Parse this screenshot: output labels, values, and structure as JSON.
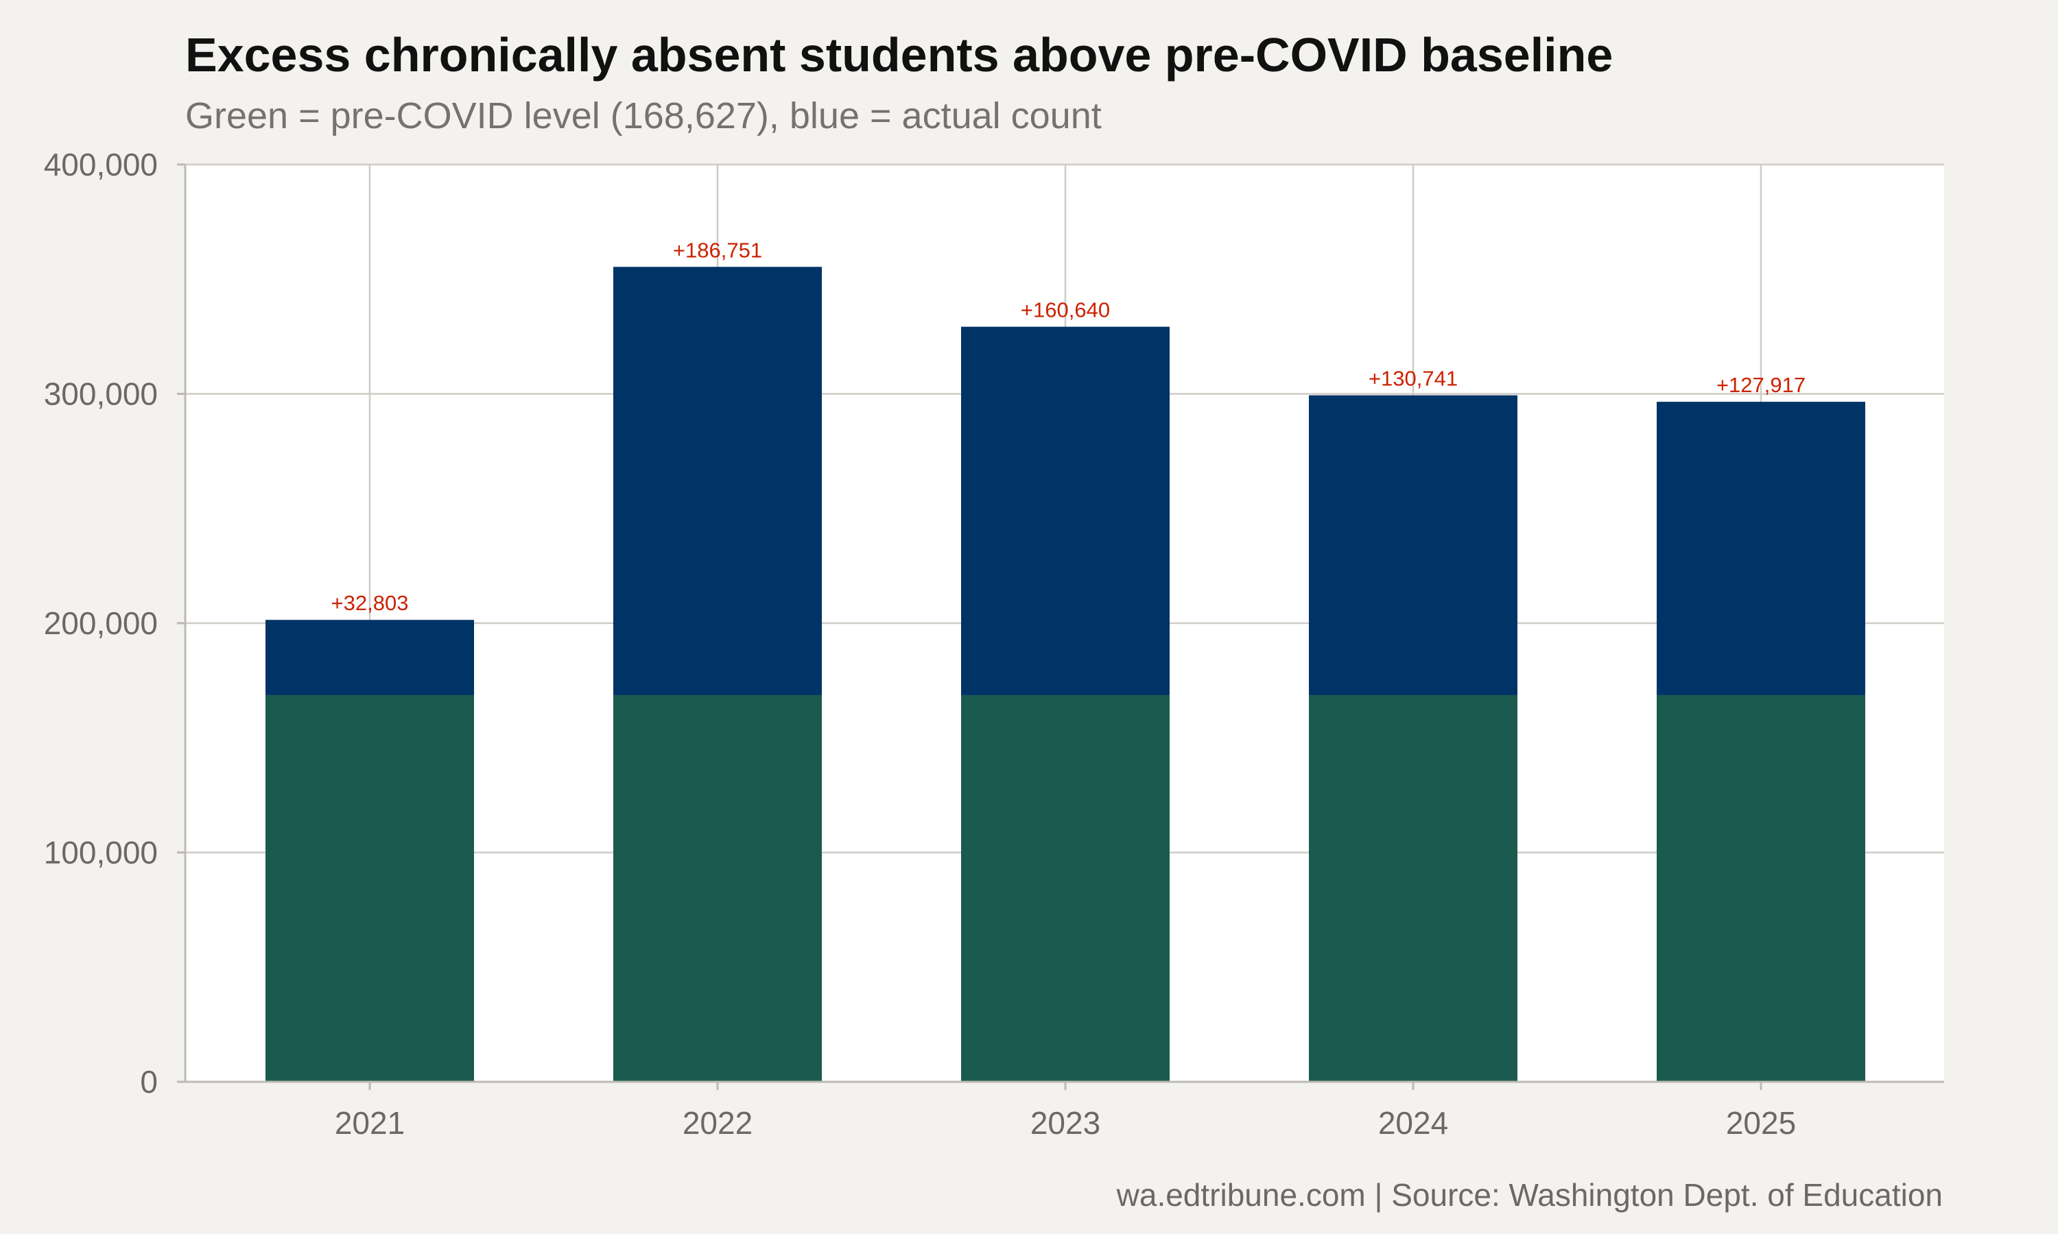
{
  "title": "Excess chronically absent students above pre-COVID baseline",
  "subtitle": "Green = pre-COVID level (168,627), blue = actual count",
  "caption": "wa.edtribune.com | Source: Washington Dept. of Education",
  "colors": {
    "baseline": "#1a5a4f",
    "excess": "#003366",
    "label": "#cc2200",
    "panel": "#ffffff",
    "background": "#f4f2ee",
    "grid": "#cfccc6",
    "axis": "#bdbab4"
  },
  "chart_data": {
    "type": "bar",
    "stacked": true,
    "categories": [
      "2021",
      "2022",
      "2023",
      "2024",
      "2025"
    ],
    "baseline": 168627,
    "series": [
      {
        "values": [
          168627,
          168627,
          168627,
          168627,
          168627
        ]
      },
      {
        "values": [
          32803,
          186751,
          160640,
          130741,
          127917
        ]
      }
    ],
    "totals": [
      201430,
      355378,
      329267,
      299368,
      296544
    ],
    "data_labels": [
      "+32,803",
      "+186,751",
      "+160,640",
      "+130,741",
      "+127,917"
    ],
    "ylim": [
      0,
      400000
    ],
    "yticks": [
      0,
      100000,
      200000,
      300000,
      400000
    ],
    "ytick_labels": [
      "0",
      "100,000",
      "200,000",
      "300,000",
      "400,000"
    ],
    "xlabel": "",
    "ylabel": "",
    "grid": true,
    "legend": "none"
  }
}
